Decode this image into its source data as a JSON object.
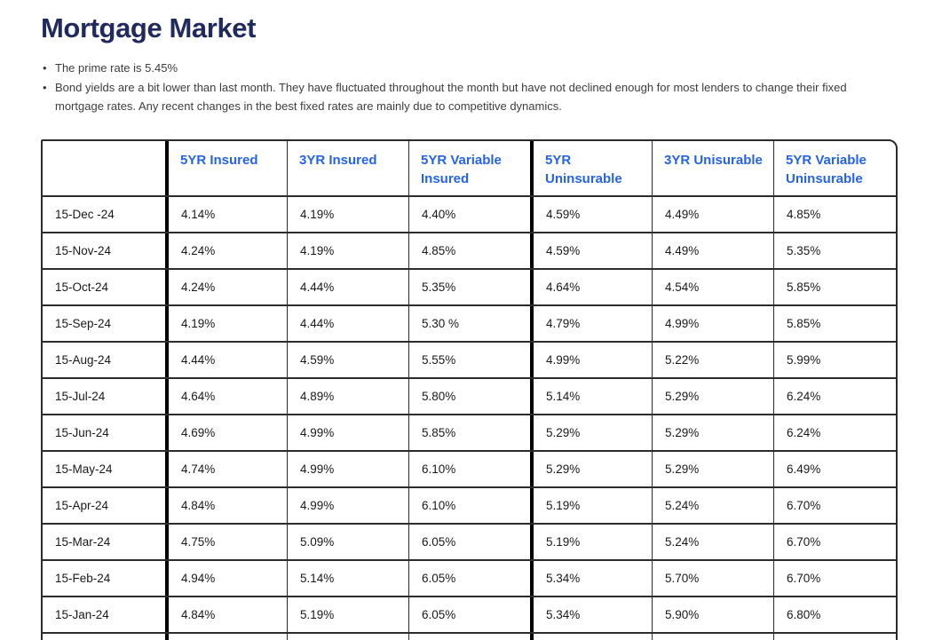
{
  "page": {
    "title": "Mortgage Market",
    "bullets": [
      "The prime rate is 5.45%",
      "Bond yields are a bit lower than last month. They have fluctuated throughout the month but have not declined enough for most lenders to change their fixed mortgage rates. Any recent changes in the best fixed rates are mainly due to competitive dynamics."
    ]
  },
  "colors": {
    "title_text": "#212a5e",
    "header_text": "#2563eb",
    "body_text": "#3d3d3d",
    "cell_text": "#191919",
    "table_border": "#2b2b2b",
    "thick_divider": "#000000"
  },
  "table": {
    "headers": [
      "",
      "5YR Insured",
      "3YR Insured",
      "5YR Variable Insured",
      "5YR Uninsurable",
      "3YR Unisurable",
      "5YR Variable Uninsurable"
    ],
    "rows": [
      {
        "date": "15-Dec -24",
        "values": [
          "4.14%",
          "4.19%",
          "4.40%",
          "4.59%",
          "4.49%",
          "4.85%"
        ]
      },
      {
        "date": "15-Nov-24",
        "values": [
          "4.24%",
          "4.19%",
          "4.85%",
          "4.59%",
          "4.49%",
          "5.35%"
        ]
      },
      {
        "date": "15-Oct-24",
        "values": [
          "4.24%",
          "4.44%",
          "5.35%",
          "4.64%",
          "4.54%",
          "5.85%"
        ]
      },
      {
        "date": "15-Sep-24",
        "values": [
          "4.19%",
          "4.44%",
          "5.30 %",
          "4.79%",
          "4.99%",
          "5.85%"
        ]
      },
      {
        "date": "15-Aug-24",
        "values": [
          "4.44%",
          "4.59%",
          "5.55%",
          "4.99%",
          "5.22%",
          "5.99%"
        ]
      },
      {
        "date": "15-Jul-24",
        "values": [
          "4.64%",
          "4.89%",
          "5.80%",
          "5.14%",
          "5.29%",
          "6.24%"
        ]
      },
      {
        "date": "15-Jun-24",
        "values": [
          "4.69%",
          "4.99%",
          "5.85%",
          "5.29%",
          "5.29%",
          "6.24%"
        ]
      },
      {
        "date": "15-May-24",
        "values": [
          "4.74%",
          "4.99%",
          "6.10%",
          "5.29%",
          "5.29%",
          "6.49%"
        ]
      },
      {
        "date": "15-Apr-24",
        "values": [
          "4.84%",
          "4.99%",
          "6.10%",
          "5.19%",
          "5.24%",
          "6.70%"
        ]
      },
      {
        "date": "15-Mar-24",
        "values": [
          "4.75%",
          "5.09%",
          "6.05%",
          "5.19%",
          "5.24%",
          "6.70%"
        ]
      },
      {
        "date": "15-Feb-24",
        "values": [
          "4.94%",
          "5.14%",
          "6.05%",
          "5.34%",
          "5.70%",
          "6.70%"
        ]
      },
      {
        "date": "15-Jan-24",
        "values": [
          "4.84%",
          "5.19%",
          "6.05%",
          "5.34%",
          "5.90%",
          "6.80%"
        ]
      }
    ],
    "partial_row_visible": true
  }
}
